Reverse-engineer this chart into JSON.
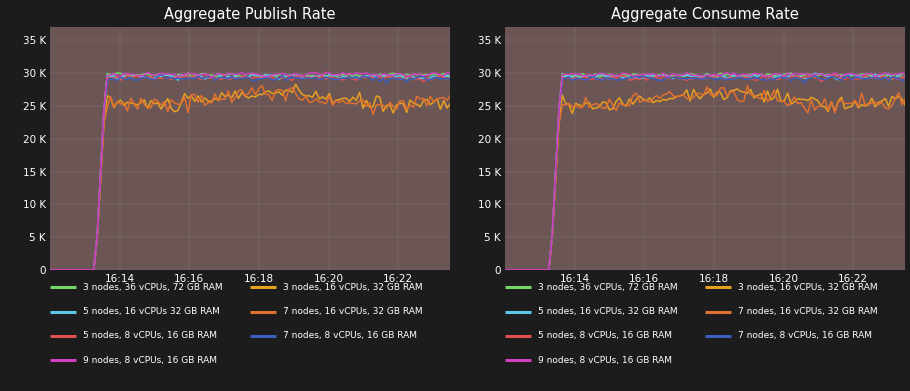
{
  "title_left": "Aggregate Publish Rate",
  "title_right": "Aggregate Consume Rate",
  "bg_color": "#1c1c1c",
  "plot_bg_color": "#6b5555",
  "text_color": "#ffffff",
  "grid_color": "#999999",
  "x_ticks": [
    "16:14",
    "16:16",
    "16:18",
    "16:20",
    "16:22"
  ],
  "y_tick_labels": [
    "0",
    "5 K",
    "10 K",
    "15 K",
    "20 K",
    "25 K",
    "30 K",
    "35 K"
  ],
  "y_tick_vals": [
    0,
    5000,
    10000,
    15000,
    20000,
    25000,
    30000,
    35000
  ],
  "series_colors": {
    "3 nodes, 36 vCPUs, 72 GB RAM": "#73d667",
    "3 nodes, 16 vCPUs, 32 GB RAM": "#e8a020",
    "5 nodes, 16 vCPUs, 32 GB RAM": "#5bc8e8",
    "7 nodes, 16 vCPUs, 32 GB RAM": "#e07030",
    "5 nodes, 8 vCPUs, 16 GB RAM": "#e05050",
    "7 nodes, 8 vCPUs, 16 GB RAM": "#3a5fbf",
    "9 nodes, 8 vCPUs, 16 GB RAM": "#d040c0"
  },
  "legend_rows": [
    [
      "3 nodes, 36 vCPUs, 72 GB RAM",
      "3 nodes, 16 vCPUs, 32 GB RAM"
    ],
    [
      "5 nodes, 16 vCPUs, 32 GB RAM",
      "7 nodes, 16 vCPUs, 32 GB RAM"
    ],
    [
      "5 nodes, 8 vCPUs, 16 GB RAM",
      "7 nodes, 8 vCPUs, 16 GB RAM"
    ],
    [
      "9 nodes, 8 vCPUs, 16 GB RAM",
      null
    ]
  ],
  "legend_rows_left": [
    [
      "3 nodes, 36 vCPUs, 72 GB RAM",
      "3 nodes, 16 vCPUs, 32 GB RAM"
    ],
    [
      "5 nodes, 16 vCPUs 32 GB RAM",
      "7 nodes, 16 vCPUs, 32 GB RAM"
    ],
    [
      "5 nodes, 8 vCPUs, 16 GB RAM",
      "7 nodes, 8 vCPUs, 16 GB RAM"
    ],
    [
      "9 nodes, 8 vCPUs, 16 GB RAM",
      null
    ]
  ]
}
